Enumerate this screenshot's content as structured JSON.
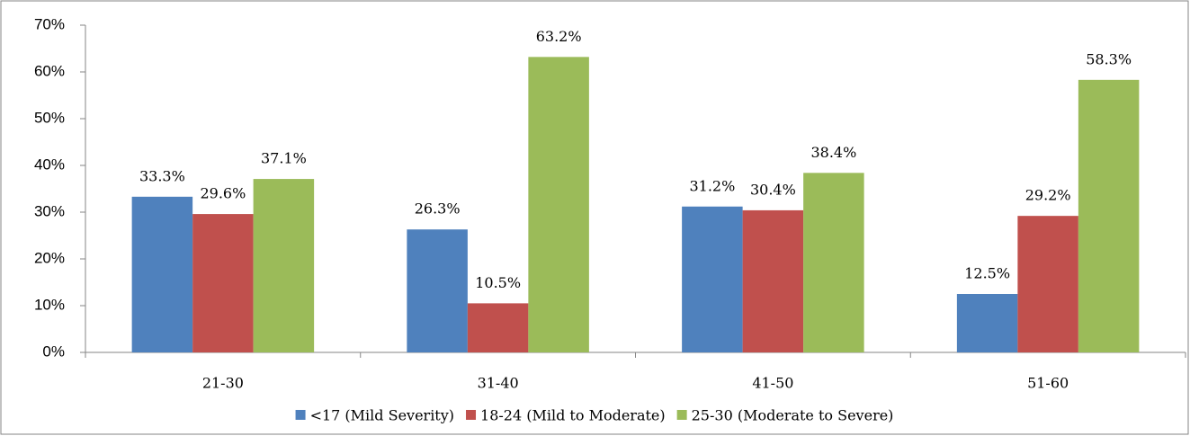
{
  "chart_data": {
    "type": "bar",
    "categories": [
      "21-30",
      "31-40",
      "41-50",
      "51-60"
    ],
    "series": [
      {
        "name": "<17 (Mild Severity)",
        "color": "#4f81bd",
        "values": [
          33.3,
          26.3,
          31.2,
          12.5
        ],
        "value_labels": [
          "33.3%",
          "26.3%",
          "31.2%",
          "12.5%"
        ]
      },
      {
        "name": "18-24 (Mild to Moderate)",
        "color": "#c0504d",
        "values": [
          29.6,
          10.5,
          30.4,
          29.2
        ],
        "value_labels": [
          "29.6%",
          "10.5%",
          "30.4%",
          "29.2%"
        ]
      },
      {
        "name": "25-30 (Moderate to Severe)",
        "color": "#9bbb59",
        "values": [
          37.1,
          63.2,
          38.4,
          58.3
        ],
        "value_labels": [
          "37.1%",
          "63.2%",
          "38.4%",
          "58.3%"
        ]
      }
    ],
    "ylim": [
      0,
      70
    ],
    "yticks": [
      {
        "value": 0,
        "label": "0%"
      },
      {
        "value": 10,
        "label": "10%"
      },
      {
        "value": 20,
        "label": "20%"
      },
      {
        "value": 30,
        "label": "30%"
      },
      {
        "value": 40,
        "label": "40%"
      },
      {
        "value": 50,
        "label": "50%"
      },
      {
        "value": 60,
        "label": "60%"
      },
      {
        "value": 70,
        "label": "70%"
      }
    ],
    "grid": false,
    "legend": "bottom"
  }
}
